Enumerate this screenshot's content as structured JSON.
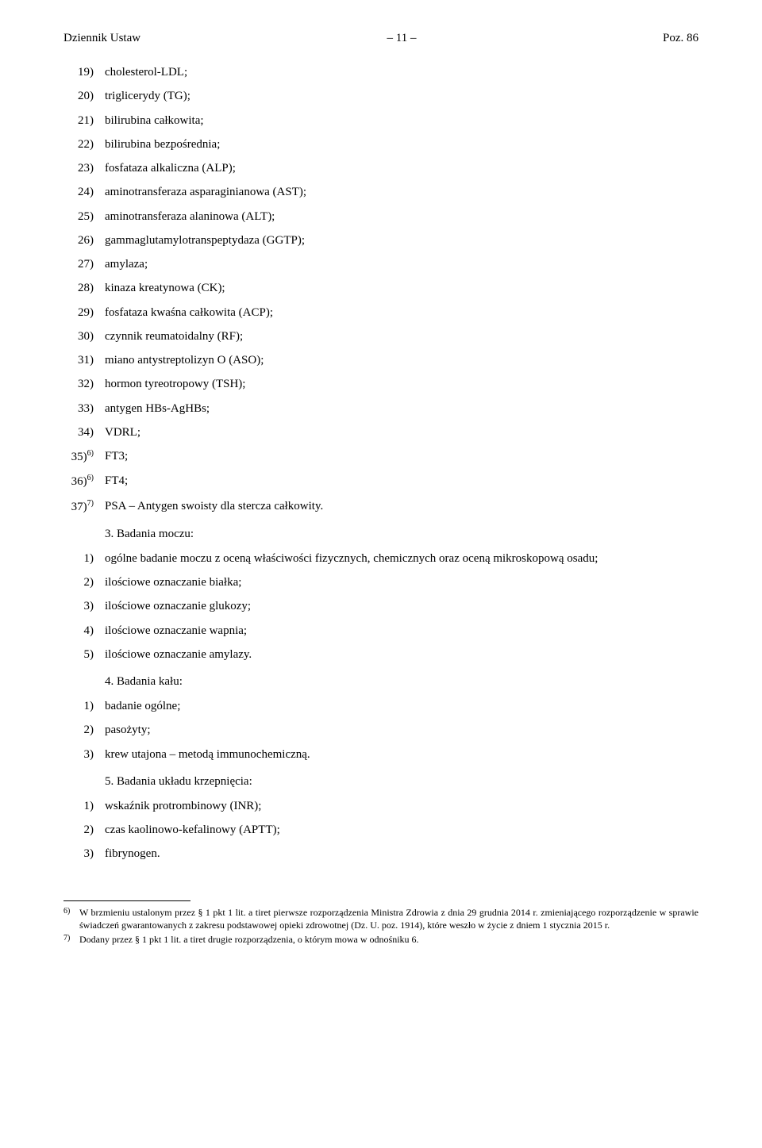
{
  "header": {
    "left": "Dziennik Ustaw",
    "center": "– 11 –",
    "right": "Poz. 86"
  },
  "lists": {
    "main": [
      {
        "num": "19)",
        "text": "cholesterol-LDL;"
      },
      {
        "num": "20)",
        "text": "triglicerydy (TG);"
      },
      {
        "num": "21)",
        "text": "bilirubina całkowita;"
      },
      {
        "num": "22)",
        "text": "bilirubina bezpośrednia;"
      },
      {
        "num": "23)",
        "text": "fosfataza alkaliczna (ALP);"
      },
      {
        "num": "24)",
        "text": "aminotransferaza asparaginianowa (AST);"
      },
      {
        "num": "25)",
        "text": "aminotransferaza alaninowa (ALT);"
      },
      {
        "num": "26)",
        "text": "gammaglutamylotranspeptydaza (GGTP);"
      },
      {
        "num": "27)",
        "text": "amylaza;"
      },
      {
        "num": "28)",
        "text": "kinaza kreatynowa (CK);"
      },
      {
        "num": "29)",
        "text": "fosfataza kwaśna całkowita (ACP);"
      },
      {
        "num": "30)",
        "text": "czynnik reumatoidalny (RF);"
      },
      {
        "num": "31)",
        "text": "miano antystreptolizyn O (ASO);"
      },
      {
        "num": "32)",
        "text": "hormon tyreotropowy (TSH);"
      },
      {
        "num": "33)",
        "text": "antygen HBs-AgHBs;"
      },
      {
        "num": "34)",
        "text": "VDRL;"
      },
      {
        "num": "35)",
        "sup": "6)",
        "text": "FT3;"
      },
      {
        "num": "36)",
        "sup": "6)",
        "text": "FT4;"
      },
      {
        "num": "37)",
        "sup": "7)",
        "text": "PSA – Antygen swoisty dla stercza całkowity."
      }
    ],
    "section3_title": "3. Badania moczu:",
    "section3": [
      {
        "num": "1)",
        "text": "ogólne badanie moczu z oceną właściwości fizycznych, chemicznych oraz oceną mikroskopową osadu;"
      },
      {
        "num": "2)",
        "text": "ilościowe oznaczanie białka;"
      },
      {
        "num": "3)",
        "text": "ilościowe oznaczanie glukozy;"
      },
      {
        "num": "4)",
        "text": "ilościowe oznaczanie wapnia;"
      },
      {
        "num": "5)",
        "text": "ilościowe oznaczanie amylazy."
      }
    ],
    "section4_title": "4. Badania kału:",
    "section4": [
      {
        "num": "1)",
        "text": "badanie ogólne;"
      },
      {
        "num": "2)",
        "text": "pasożyty;"
      },
      {
        "num": "3)",
        "text": "krew utajona – metodą immunochemiczną."
      }
    ],
    "section5_title": "5. Badania układu krzepnięcia:",
    "section5": [
      {
        "num": "1)",
        "text": "wskaźnik protrombinowy (INR);"
      },
      {
        "num": "2)",
        "text": "czas kaolinowo-kefalinowy (APTT);"
      },
      {
        "num": "3)",
        "text": "fibrynogen."
      }
    ]
  },
  "footnotes": [
    {
      "num": "6)",
      "text": "W brzmieniu ustalonym przez § 1 pkt 1 lit. a tiret pierwsze rozporządzenia Ministra Zdrowia z dnia 29 grudnia 2014 r. zmieniającego rozporządzenie w sprawie świadczeń gwarantowanych z zakresu podstawowej opieki zdrowotnej (Dz. U. poz. 1914), które weszło w życie z dniem 1 stycznia 2015 r."
    },
    {
      "num": "7)",
      "text": "Dodany przez § 1 pkt 1 lit. a tiret drugie rozporządzenia, o którym mowa w odnośniku 6."
    }
  ]
}
